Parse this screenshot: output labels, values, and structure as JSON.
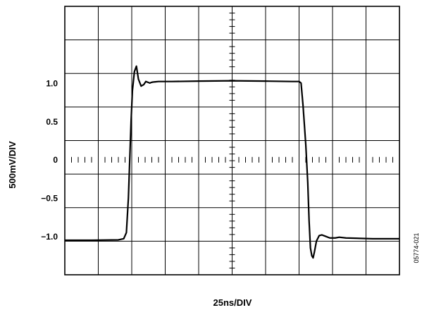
{
  "chart_data": {
    "type": "line",
    "xlabel": "25ns/DIV",
    "ylabel": "500mV/DIV",
    "xlim": [
      0,
      250
    ],
    "ylim": [
      -1.5,
      2.0
    ],
    "x_divisions": 10,
    "y_divisions": 8,
    "grid": true,
    "y_tick_labels": [
      {
        "value": 1.0,
        "text": "1.0"
      },
      {
        "value": 0.5,
        "text": "0.5"
      },
      {
        "value": 0,
        "text": "0"
      },
      {
        "value": -0.5,
        "text": "−0.5"
      },
      {
        "value": -1.0,
        "text": "−1.0"
      }
    ],
    "series": [
      {
        "x": [
          0,
          20,
          40,
          44,
          46,
          47.5,
          48.5,
          49.5,
          50.5,
          52,
          53.5,
          55,
          57,
          59,
          60.5,
          62,
          63.5,
          65,
          67,
          70,
          75,
          80,
          100,
          125,
          150,
          170,
          175,
          176.5,
          178,
          180,
          181.5,
          182.5,
          183.5,
          184.5,
          185.5,
          186.5,
          188,
          190,
          192,
          195,
          198,
          202,
          205,
          210,
          230,
          250
        ],
        "y": [
          -1.05,
          -1.05,
          -1.045,
          -1.03,
          -0.95,
          -0.5,
          0.0,
          0.5,
          0.9,
          1.15,
          1.22,
          1.05,
          0.96,
          0.98,
          1.02,
          1.01,
          1.0,
          1.01,
          1.015,
          1.02,
          1.02,
          1.02,
          1.025,
          1.03,
          1.025,
          1.02,
          1.02,
          1.0,
          0.7,
          0.2,
          -0.3,
          -0.8,
          -1.15,
          -1.25,
          -1.28,
          -1.2,
          -1.06,
          -0.99,
          -0.98,
          -1.0,
          -1.02,
          -1.02,
          -1.01,
          -1.02,
          -1.03,
          -1.03
        ]
      }
    ]
  },
  "figure_code": "05774-021"
}
